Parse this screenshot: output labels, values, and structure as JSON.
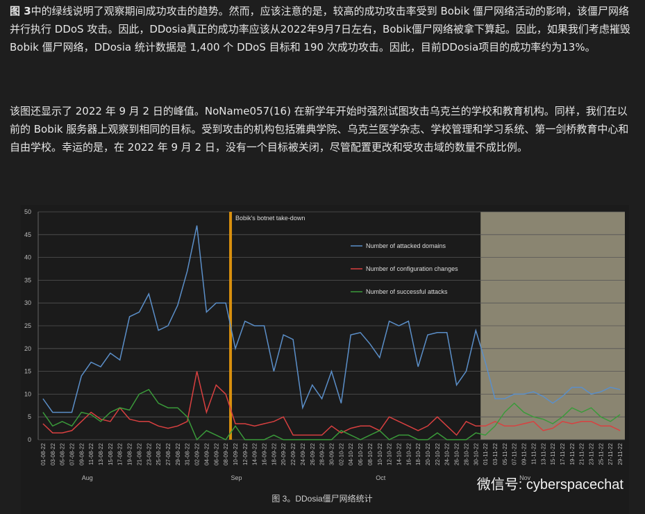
{
  "body": {
    "paragraphs": [
      {
        "bold": "图 3",
        "text": "中的绿线说明了观察期间成功攻击的趋势。然而，应该注意的是，较高的成功攻击率受到 Bobik 僵尸网络活动的影响，该僵尸网络并行执行 DDoS 攻击。因此，DDosia真正的成功率应该从2022年9月7日左右，Bobik僵尸网络被拿下算起。因此，如果我们考虑摧毁 Bobik 僵尸网络，DDosia 统计数据是 1,400 个 DDoS 目标和 190 次成功攻击。因此，目前DDosia项目的成功率约为13%。"
      },
      {
        "text": "该图还显示了 2022 年 9 月 2 日的峰值。NoName057(16) 在新学年开始时强烈试图攻击乌克兰的学校和教育机构。同样，我们在以前的 Bobik 服务器上观察到相同的目标。受到攻击的机构包括雅典学院、乌克兰医学杂志、学校管理和学习系统、第一剑桥教育中心和自由学校。幸运的是，在 2022 年 9 月 2 日，没有一个目标被关闭，尽管配置更改和受攻击域的数量不成比例。"
      }
    ],
    "caption": "图 3。DDosia僵尸网络统计",
    "watermark": "微信号: cyberspacechat"
  },
  "chart_data": {
    "type": "line",
    "categories": [
      "01-08-22",
      "03-08-22",
      "05-08-22",
      "07-08-22",
      "09-08-22",
      "11-08-22",
      "13-08-22",
      "15-08-22",
      "17-08-22",
      "19-08-22",
      "21-08-22",
      "23-08-22",
      "25-08-22",
      "27-08-22",
      "29-08-22",
      "31-08-22",
      "02-09-22",
      "04-09-22",
      "06-09-22",
      "08-09-22",
      "10-09-22",
      "12-09-22",
      "14-09-22",
      "16-09-22",
      "18-09-22",
      "20-09-22",
      "22-09-22",
      "24-09-22",
      "26-09-22",
      "28-09-22",
      "30-09-22",
      "02-10-22",
      "04-10-22",
      "06-10-22",
      "08-10-22",
      "10-10-22",
      "12-10-22",
      "14-10-22",
      "16-10-22",
      "18-10-22",
      "20-10-22",
      "22-10-22",
      "24-10-22",
      "26-10-22",
      "28-10-22",
      "30-10-22",
      "01-11-22",
      "03-11-22",
      "05-11-22",
      "07-11-22",
      "09-11-22",
      "11-11-22",
      "13-11-22",
      "15-11-22",
      "17-11-22",
      "19-11-22",
      "21-11-22",
      "23-11-22",
      "25-11-22",
      "27-11-22",
      "29-11-22"
    ],
    "months": [
      "Aug",
      "Sep",
      "Oct",
      "Nov"
    ],
    "series": [
      {
        "name": "Number of attacked domains",
        "color": "#5b8fc9",
        "values": [
          9,
          6,
          6,
          6,
          14,
          17,
          16,
          19,
          17.5,
          27,
          28,
          32,
          24,
          25,
          29.5,
          37,
          47,
          28,
          30,
          30,
          20,
          26,
          25,
          25,
          15,
          23,
          22,
          7,
          12,
          9,
          15,
          8,
          23,
          23.5,
          21,
          18,
          26,
          25,
          26,
          16,
          23,
          23.5,
          23.5,
          12,
          15,
          24,
          17,
          9,
          9,
          10,
          10,
          10.5,
          9.5,
          8,
          9.5,
          11.5,
          11.5,
          10,
          10.5,
          11.5,
          11
        ]
      },
      {
        "name": "Number of configuration changes",
        "color": "#d94040",
        "values": [
          3.5,
          1.5,
          1.5,
          2,
          4,
          6,
          4.5,
          4,
          7,
          4.5,
          4,
          4,
          3,
          2.5,
          3,
          4,
          15,
          6,
          12,
          10,
          3.5,
          3.5,
          3,
          3.5,
          4,
          5,
          1,
          1,
          1,
          1,
          3,
          1.5,
          2.5,
          3,
          3,
          2,
          5,
          4,
          3,
          2,
          3,
          5,
          3,
          1,
          4,
          3,
          3,
          4,
          3,
          3,
          3.5,
          4,
          2,
          2.5,
          4,
          3.5,
          4,
          4,
          3,
          3,
          2
        ]
      },
      {
        "name": "Number of successful attacks",
        "color": "#3a9a3a",
        "values": [
          6,
          3,
          4,
          3,
          6,
          5.5,
          4,
          6,
          7,
          6.5,
          10,
          11,
          8,
          7,
          7,
          5,
          0,
          2,
          1,
          0,
          3,
          0,
          0,
          0,
          1,
          0,
          0,
          0,
          0,
          0,
          0,
          2,
          1,
          0,
          1,
          2,
          0,
          1,
          1,
          0,
          0,
          1.5,
          0,
          0,
          0,
          1.5,
          1,
          3,
          6,
          8,
          6,
          5,
          4.5,
          3.5,
          5,
          7,
          6,
          7,
          5,
          4,
          5.5
        ]
      }
    ],
    "ylim": [
      0,
      50
    ],
    "yticks": [
      0,
      5,
      10,
      15,
      20,
      25,
      30,
      35,
      40,
      45,
      50
    ],
    "grid": true,
    "takedown": {
      "label": "Bobik's botnet take-down",
      "at": "08-09-22"
    },
    "shaded_from": "01-11-22"
  }
}
